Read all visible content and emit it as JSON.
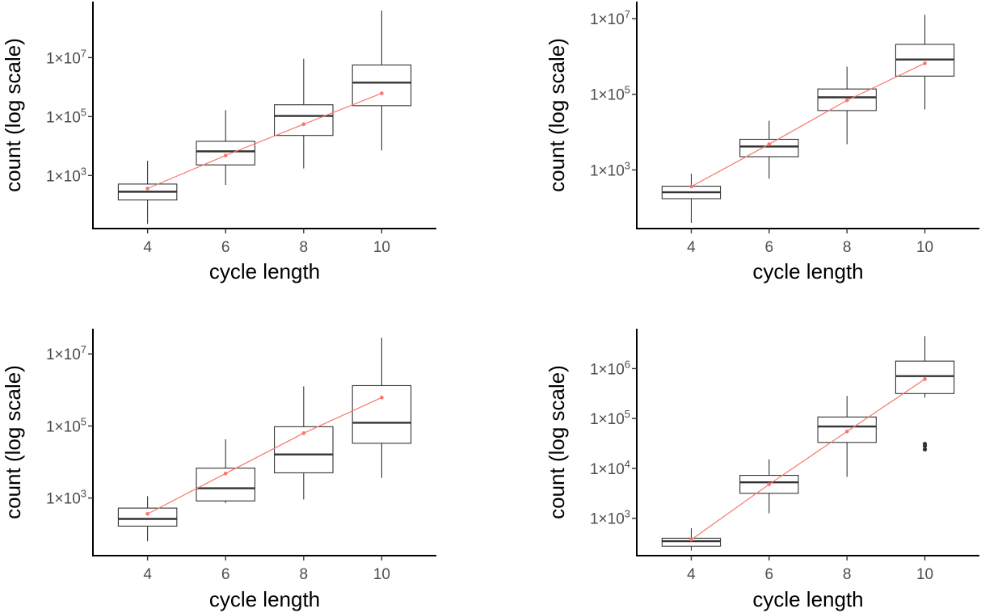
{
  "chart_data": [
    {
      "type": "box",
      "xlabel": "cycle length",
      "ylabel": "count (log scale)",
      "x_ticks": [
        "4",
        "6",
        "8",
        "10"
      ],
      "y_scale": "log10",
      "y_range_log10": [
        1.2,
        8.9
      ],
      "y_ticks": [
        {
          "base": "1×10",
          "exp": "3",
          "log10": 3
        },
        {
          "base": "1×10",
          "exp": "5",
          "log10": 5
        },
        {
          "base": "1×10",
          "exp": "7",
          "log10": 7
        }
      ],
      "boxes": [
        {
          "x": 4,
          "whisker_low_log10": 1.36,
          "q1_log10": 2.17,
          "median_log10": 2.45,
          "q3_log10": 2.71,
          "whisker_high_log10": 3.5
        },
        {
          "x": 6,
          "whisker_low_log10": 2.68,
          "q1_log10": 3.36,
          "median_log10": 3.82,
          "q3_log10": 4.16,
          "whisker_high_log10": 5.22
        },
        {
          "x": 8,
          "whisker_low_log10": 3.24,
          "q1_log10": 4.36,
          "median_log10": 5.02,
          "q3_log10": 5.4,
          "whisker_high_log10": 6.96
        },
        {
          "x": 10,
          "whisker_low_log10": 3.85,
          "q1_log10": 5.37,
          "median_log10": 6.15,
          "q3_log10": 6.75,
          "whisker_high_log10": 8.6
        }
      ],
      "outliers_log10": [],
      "mean_log10": [
        2.56,
        3.68,
        4.74,
        5.79
      ]
    },
    {
      "type": "box",
      "xlabel": "cycle length",
      "ylabel": "count (log scale)",
      "x_ticks": [
        "4",
        "6",
        "8",
        "10"
      ],
      "y_scale": "log10",
      "y_range_log10": [
        1.45,
        7.45
      ],
      "y_ticks": [
        {
          "base": "1×10",
          "exp": "3",
          "log10": 3
        },
        {
          "base": "1×10",
          "exp": "5",
          "log10": 5
        },
        {
          "base": "1×10",
          "exp": "7",
          "log10": 7
        }
      ],
      "boxes": [
        {
          "x": 4,
          "whisker_low_log10": 1.6,
          "q1_log10": 2.24,
          "median_log10": 2.41,
          "q3_log10": 2.57,
          "whisker_high_log10": 2.9
        },
        {
          "x": 6,
          "whisker_low_log10": 2.77,
          "q1_log10": 3.35,
          "median_log10": 3.62,
          "q3_log10": 3.81,
          "whisker_high_log10": 4.3
        },
        {
          "x": 8,
          "whisker_low_log10": 3.68,
          "q1_log10": 4.57,
          "median_log10": 4.92,
          "q3_log10": 5.14,
          "whisker_high_log10": 5.73
        },
        {
          "x": 10,
          "whisker_low_log10": 4.6,
          "q1_log10": 5.48,
          "median_log10": 5.92,
          "q3_log10": 6.32,
          "whisker_high_log10": 7.1
        }
      ],
      "outliers_log10": [],
      "mean_log10": [
        2.56,
        3.68,
        4.84,
        5.82
      ]
    },
    {
      "type": "box",
      "xlabel": "cycle length",
      "ylabel": "count (log scale)",
      "x_ticks": [
        "4",
        "6",
        "8",
        "10"
      ],
      "y_scale": "log10",
      "y_range_log10": [
        1.4,
        7.7
      ],
      "y_ticks": [
        {
          "base": "1×10",
          "exp": "3",
          "log10": 3
        },
        {
          "base": "1×10",
          "exp": "5",
          "log10": 5
        },
        {
          "base": "1×10",
          "exp": "7",
          "log10": 7
        }
      ],
      "boxes": [
        {
          "x": 4,
          "whisker_low_log10": 1.8,
          "q1_log10": 2.22,
          "median_log10": 2.42,
          "q3_log10": 2.72,
          "whisker_high_log10": 3.05
        },
        {
          "x": 6,
          "whisker_low_log10": 2.86,
          "q1_log10": 2.92,
          "median_log10": 3.27,
          "q3_log10": 3.83,
          "whisker_high_log10": 4.63
        },
        {
          "x": 8,
          "whisker_low_log10": 2.96,
          "q1_log10": 3.7,
          "median_log10": 4.21,
          "q3_log10": 4.98,
          "whisker_high_log10": 6.1
        },
        {
          "x": 10,
          "whisker_low_log10": 3.56,
          "q1_log10": 4.52,
          "median_log10": 5.09,
          "q3_log10": 6.12,
          "whisker_high_log10": 7.45
        }
      ],
      "outliers_log10": [],
      "mean_log10": [
        2.56,
        3.68,
        4.8,
        5.79
      ]
    },
    {
      "type": "box",
      "xlabel": "cycle length",
      "ylabel": "count (log scale)",
      "x_ticks": [
        "4",
        "6",
        "8",
        "10"
      ],
      "y_scale": "log10",
      "y_range_log10": [
        2.25,
        6.8
      ],
      "y_ticks": [
        {
          "base": "1×10",
          "exp": "3",
          "log10": 3
        },
        {
          "base": "1×10",
          "exp": "4",
          "log10": 4
        },
        {
          "base": "1×10",
          "exp": "5",
          "log10": 5
        },
        {
          "base": "1×10",
          "exp": "6",
          "log10": 6
        }
      ],
      "boxes": [
        {
          "x": 4,
          "whisker_low_log10": 2.35,
          "q1_log10": 2.44,
          "median_log10": 2.54,
          "q3_log10": 2.6,
          "whisker_high_log10": 2.8
        },
        {
          "x": 6,
          "whisker_low_log10": 3.1,
          "q1_log10": 3.5,
          "median_log10": 3.72,
          "q3_log10": 3.86,
          "whisker_high_log10": 4.18
        },
        {
          "x": 8,
          "whisker_low_log10": 3.83,
          "q1_log10": 4.52,
          "median_log10": 4.84,
          "q3_log10": 5.03,
          "whisker_high_log10": 5.45
        },
        {
          "x": 10,
          "whisker_low_log10": 5.42,
          "q1_log10": 5.5,
          "median_log10": 5.85,
          "q3_log10": 6.15,
          "whisker_high_log10": 6.65
        }
      ],
      "outliers_log10": [
        {
          "x": 10,
          "log10": 4.38
        },
        {
          "x": 10,
          "log10": 4.45
        },
        {
          "x": 10,
          "log10": 4.49
        }
      ],
      "mean_log10": [
        2.57,
        3.68,
        4.74,
        5.79
      ]
    }
  ]
}
